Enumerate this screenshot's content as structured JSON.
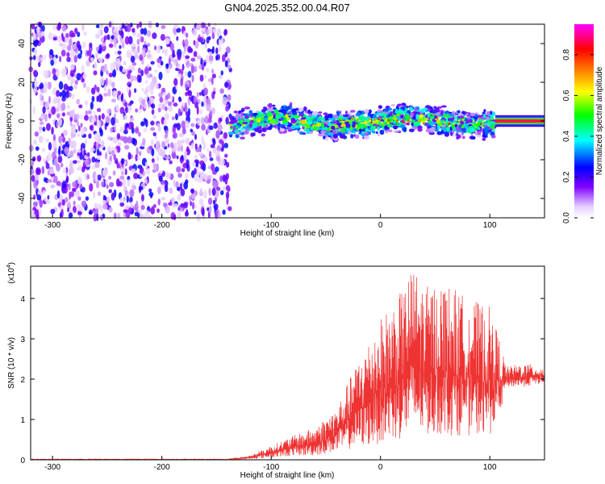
{
  "title": "GN04.2025.352.00.04.R07",
  "chart_data": [
    {
      "type": "heatmap",
      "name": "spectrogram",
      "xlabel": "Height of straight line (km)",
      "ylabel": "Frequency (Hz)",
      "xlim": [
        -320,
        150
      ],
      "ylim": [
        -50,
        50
      ],
      "xticks": [
        -300,
        -200,
        -100,
        0,
        100
      ],
      "yticks": [
        -40,
        -20,
        0,
        20,
        40
      ],
      "colorbar": {
        "label": "Normalized spectral amplitude",
        "range": [
          0,
          0.95
        ],
        "ticks": [
          0.0,
          0.2,
          0.4,
          0.6,
          0.8
        ],
        "colors": [
          "#ffffff",
          "#e6ccff",
          "#8000ff",
          "#0000ff",
          "#00ffff",
          "#00ff00",
          "#ffff00",
          "#ff8000",
          "#ff0000",
          "#ff00ff"
        ]
      },
      "regions": [
        {
          "x_range": [
            -320,
            -137
          ],
          "freq_range": [
            -50,
            50
          ],
          "amplitude": "0.05-0.2",
          "description": "broadband noise"
        },
        {
          "x_range": [
            -137,
            105
          ],
          "freq_center": 0,
          "freq_halfwidth": 8,
          "amplitude": "0.1-0.6"
        },
        {
          "x_range": [
            105,
            150
          ],
          "freq_center": 0,
          "freq_halfwidth": 2,
          "amplitude": "0.7-0.9"
        }
      ]
    },
    {
      "type": "line",
      "name": "snr",
      "xlabel": "Height of straight line (km)",
      "ylabel": "SNR (10 * v/v)",
      "scale_label": "(x10",
      "scale_exp": "4",
      "scale_close": ")",
      "xlim": [
        -320,
        150
      ],
      "ylim": [
        0,
        4.8
      ],
      "xticks": [
        -300,
        -200,
        -100,
        0,
        100
      ],
      "yticks": [
        0,
        1,
        2,
        3,
        4
      ],
      "color": "#ee3333",
      "envelope": {
        "x": [
          -320,
          -140,
          -120,
          -100,
          -80,
          -60,
          -40,
          -20,
          0,
          20,
          30,
          40,
          60,
          80,
          100,
          110,
          115,
          130,
          150
        ],
        "lo": [
          0,
          0,
          0.02,
          0.05,
          0.1,
          0.1,
          0.2,
          0.3,
          0.4,
          0.5,
          0.6,
          0.6,
          0.6,
          0.6,
          0.6,
          1.2,
          1.8,
          1.8,
          1.9
        ],
        "hi": [
          0.02,
          0.02,
          0.1,
          0.35,
          0.6,
          0.8,
          1.3,
          2.5,
          3.5,
          4.2,
          4.8,
          4.3,
          4.4,
          4.0,
          3.8,
          2.9,
          2.3,
          2.4,
          2.3
        ]
      }
    }
  ]
}
